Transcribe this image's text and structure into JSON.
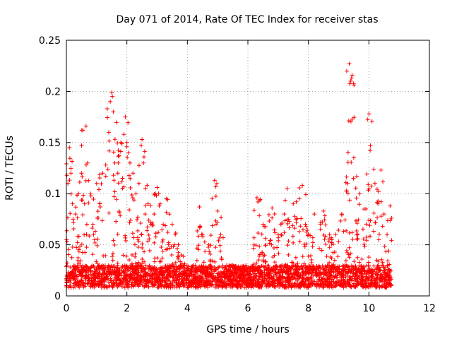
{
  "chart_data": {
    "type": "scatter",
    "title": "Day 071 of 2014, Rate Of TEC Index for receiver stas",
    "xlabel": "GPS time / hours",
    "ylabel": "ROTI / TECUs",
    "xlim": [
      0,
      12
    ],
    "ylim": [
      0,
      0.25
    ],
    "xticks": [
      0,
      2,
      4,
      6,
      8,
      10,
      12
    ],
    "yticks": [
      0,
      0.05,
      0.1,
      0.15,
      0.2,
      0.25
    ],
    "xtick_labels": [
      "0",
      "2",
      "4",
      "6",
      "8",
      "10",
      "12"
    ],
    "ytick_labels": [
      "0",
      "0.05",
      "0.1",
      "0.15",
      "0.2",
      "0.25"
    ],
    "grid": true,
    "marker": "+",
    "color": "#ff0000",
    "data_range_x": [
      0,
      10.75
    ],
    "series": [
      {
        "name": "stas",
        "x": [
          0.05,
          0.1,
          0.15,
          0.2,
          0.3,
          0.4,
          0.5,
          0.55,
          0.6,
          0.65,
          0.7,
          0.8,
          0.9,
          1.0,
          1.1,
          1.2,
          1.3,
          1.35,
          1.4,
          1.45,
          1.5,
          1.52,
          1.55,
          1.6,
          1.7,
          1.8,
          1.9,
          1.95,
          2.0,
          2.05,
          2.1,
          2.2,
          2.3,
          2.4,
          2.5,
          2.55,
          2.6,
          2.7,
          2.8,
          2.9,
          3.0,
          3.05,
          3.1,
          3.2,
          3.3,
          3.4,
          3.5,
          3.6,
          3.7,
          3.8,
          3.9,
          4.0,
          4.2,
          4.4,
          4.5,
          4.7,
          4.9,
          5.0,
          5.1,
          5.3,
          5.5,
          5.8,
          6.0,
          6.3,
          6.5,
          6.8,
          7.0,
          7.2,
          7.3,
          7.5,
          7.7,
          7.8,
          7.9,
          8.0,
          8.2,
          8.4,
          8.5,
          8.7,
          8.9,
          9.1,
          9.3,
          9.35,
          9.4,
          9.45,
          9.5,
          9.7,
          9.9,
          10.0,
          10.05,
          10.2,
          10.3,
          10.4,
          10.5,
          10.6,
          10.7
        ],
        "y": [
          0.11,
          0.145,
          0.12,
          0.09,
          0.08,
          0.1,
          0.12,
          0.162,
          0.09,
          0.166,
          0.13,
          0.1,
          0.06,
          0.11,
          0.09,
          0.12,
          0.128,
          0.183,
          0.16,
          0.19,
          0.199,
          0.195,
          0.18,
          0.13,
          0.12,
          0.15,
          0.158,
          0.175,
          0.15,
          0.14,
          0.13,
          0.12,
          0.1,
          0.11,
          0.153,
          0.13,
          0.08,
          0.09,
          0.07,
          0.08,
          0.106,
          0.1,
          0.09,
          0.07,
          0.095,
          0.08,
          0.07,
          0.06,
          0.05,
          0.04,
          0.03,
          0.025,
          0.03,
          0.087,
          0.06,
          0.05,
          0.113,
          0.083,
          0.06,
          0.03,
          0.03,
          0.025,
          0.02,
          0.096,
          0.07,
          0.086,
          0.06,
          0.08,
          0.105,
          0.09,
          0.095,
          0.108,
          0.07,
          0.06,
          0.08,
          0.07,
          0.083,
          0.06,
          0.06,
          0.08,
          0.11,
          0.227,
          0.21,
          0.173,
          0.135,
          0.1,
          0.085,
          0.178,
          0.147,
          0.11,
          0.09,
          0.123,
          0.08,
          0.06,
          0.088
        ]
      }
    ]
  }
}
